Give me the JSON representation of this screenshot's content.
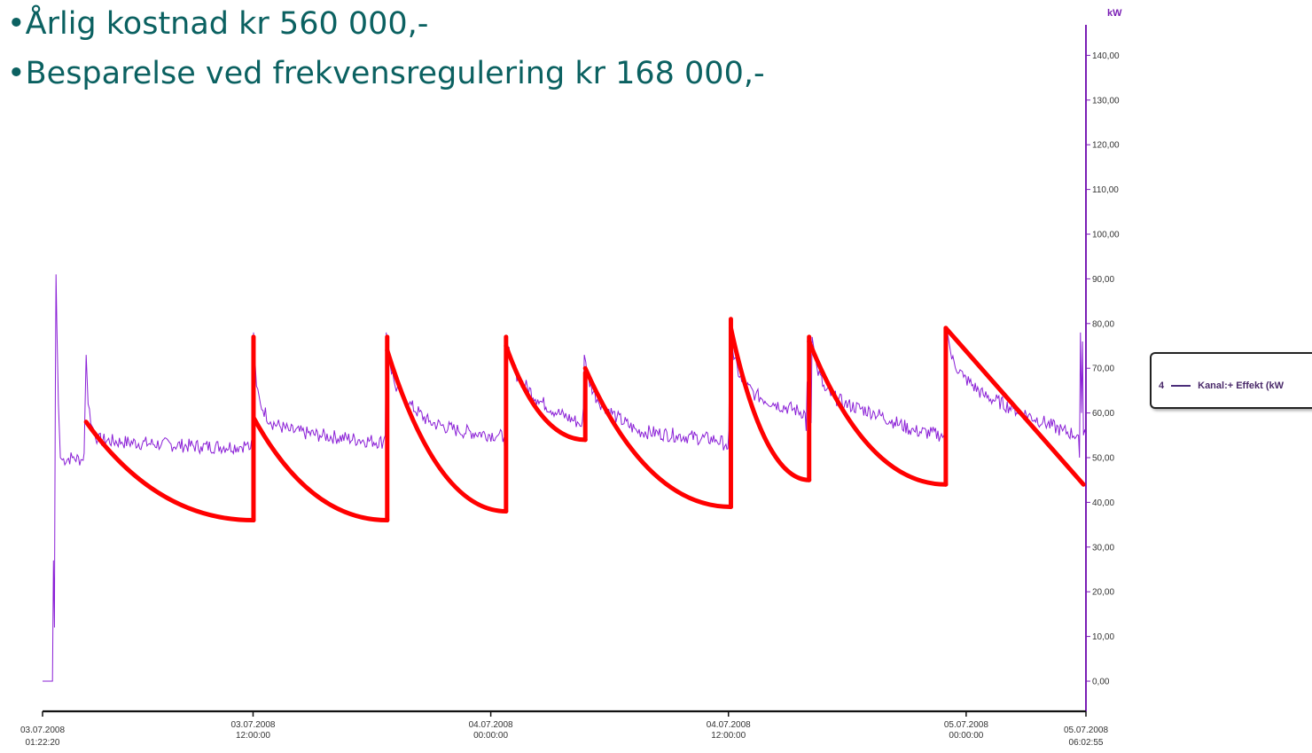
{
  "bullets": [
    {
      "marker": "•",
      "text": "Årlig kostnad kr 560 000,-"
    },
    {
      "marker": "•",
      "text": "Besparelse ved frekvensregulering kr 168 000,-"
    }
  ],
  "colors": {
    "measured": "#8a1fd6",
    "estimated": "#ff0000",
    "axis_y": "#7a1fb5",
    "axis_x": "#111111",
    "bullet_text": "#0b6161"
  },
  "legend": {
    "number": "4",
    "label": "Kanal:+ Effekt (kW"
  },
  "chart_data": [
    {
      "type": "line",
      "title": "",
      "ylabel": "kW",
      "ylim": [
        -5,
        148
      ],
      "yticks": [
        0,
        10,
        20,
        30,
        40,
        50,
        60,
        70,
        80,
        90,
        100,
        110,
        120,
        130,
        140
      ],
      "ytick_labels": [
        "0,00",
        "10,00",
        "20,00",
        "30,00",
        "40,00",
        "50,00",
        "60,00",
        "70,00",
        "80,00",
        "90,00",
        "100,00",
        "110,00",
        "120,00",
        "130,00",
        "140,00"
      ],
      "x_unit": "hours since 03.07.2008 01:22:20",
      "xlim": [
        0,
        52.676
      ],
      "xticks": [
        {
          "x": 0,
          "date": "03.07.2008",
          "time": "01:22:20"
        },
        {
          "x": 10.628,
          "date": "03.07.2008",
          "time": "12:00:00"
        },
        {
          "x": 22.628,
          "date": "04.07.2008",
          "time": "00:00:00"
        },
        {
          "x": 34.628,
          "date": "04.07.2008",
          "time": "12:00:00"
        },
        {
          "x": 46.628,
          "date": "05.07.2008",
          "time": "00:00:00"
        },
        {
          "x": 52.676,
          "date": "05.07.2008",
          "time": "06:02:55"
        }
      ],
      "series": [
        {
          "name": "Kanal:+ Effekt (kW",
          "color": "#8a1fd6",
          "noise": 1.6,
          "points": [
            [
              0.0,
              0
            ],
            [
              0.4,
              0
            ],
            [
              0.5,
              0
            ],
            [
              0.55,
              27
            ],
            [
              0.6,
              12
            ],
            [
              0.62,
              40
            ],
            [
              0.65,
              68
            ],
            [
              0.68,
              91
            ],
            [
              0.72,
              80
            ],
            [
              0.8,
              62
            ],
            [
              0.9,
              50
            ],
            [
              1.0,
              49.5
            ],
            [
              1.5,
              50
            ],
            [
              2.0,
              49.5
            ],
            [
              2.1,
              51
            ],
            [
              2.2,
              73
            ],
            [
              2.3,
              62
            ],
            [
              2.5,
              57
            ],
            [
              2.8,
              54
            ],
            [
              4.0,
              53.5
            ],
            [
              6.0,
              53
            ],
            [
              8.0,
              52.5
            ],
            [
              10.0,
              52.5
            ],
            [
              10.3,
              53
            ],
            [
              10.5,
              52
            ],
            [
              10.6,
              53
            ],
            [
              10.65,
              78
            ],
            [
              10.8,
              66
            ],
            [
              11.0,
              62
            ],
            [
              11.5,
              58
            ],
            [
              12.5,
              56
            ],
            [
              14.0,
              55
            ],
            [
              16.0,
              54
            ],
            [
              17.2,
              53.5
            ],
            [
              17.3,
              55
            ],
            [
              17.35,
              78
            ],
            [
              17.5,
              72
            ],
            [
              17.8,
              66
            ],
            [
              18.5,
              62
            ],
            [
              19.5,
              58
            ],
            [
              21.0,
              56
            ],
            [
              23.0,
              55
            ],
            [
              23.3,
              54.5
            ],
            [
              23.35,
              49
            ],
            [
              23.4,
              56
            ],
            [
              23.45,
              77
            ],
            [
              23.6,
              72
            ],
            [
              24.0,
              68
            ],
            [
              25.0,
              63
            ],
            [
              26.0,
              60
            ],
            [
              27.0,
              58
            ],
            [
              27.2,
              57
            ],
            [
              27.3,
              61
            ],
            [
              27.35,
              73
            ],
            [
              27.5,
              68
            ],
            [
              28.0,
              63
            ],
            [
              29.0,
              59
            ],
            [
              30.0,
              56
            ],
            [
              32.0,
              55
            ],
            [
              34.0,
              54
            ],
            [
              34.5,
              53
            ],
            [
              34.6,
              52
            ],
            [
              34.65,
              56
            ],
            [
              34.7,
              80
            ],
            [
              34.9,
              72
            ],
            [
              35.3,
              67
            ],
            [
              36.0,
              64
            ],
            [
              37.0,
              62
            ],
            [
              38.5,
              60
            ],
            [
              38.55,
              56
            ],
            [
              38.6,
              67
            ],
            [
              38.65,
              58
            ],
            [
              38.8,
              58
            ],
            [
              38.85,
              77
            ],
            [
              39.1,
              70
            ],
            [
              39.5,
              65
            ],
            [
              40.5,
              62
            ],
            [
              42.0,
              60
            ],
            [
              43.0,
              58
            ],
            [
              44.0,
              56
            ],
            [
              45.5,
              55
            ],
            [
              45.55,
              53
            ],
            [
              45.6,
              60
            ],
            [
              45.65,
              79
            ],
            [
              45.9,
              72
            ],
            [
              46.5,
              68
            ],
            [
              47.5,
              64
            ],
            [
              49.0,
              61
            ],
            [
              50.5,
              58
            ],
            [
              51.5,
              56
            ],
            [
              52.3,
              55
            ],
            [
              52.35,
              50
            ],
            [
              52.4,
              78
            ],
            [
              52.45,
              60
            ],
            [
              52.5,
              76
            ],
            [
              52.55,
              55
            ],
            [
              52.676,
              55
            ]
          ]
        },
        {
          "name": "",
          "color": "#ff0000",
          "segments": [
            [
              [
                2.2,
                58
              ],
              [
                10.5,
                36.5
              ],
              [
                10.65,
                36
              ]
            ],
            [
              [
                10.65,
                36
              ],
              [
                10.65,
                77
              ]
            ],
            [
              [
                10.65,
                59
              ],
              [
                17.3,
                36.2
              ],
              [
                17.4,
                36
              ]
            ],
            [
              [
                17.4,
                36
              ],
              [
                17.4,
                77
              ]
            ],
            [
              [
                17.4,
                74
              ],
              [
                23.3,
                38.2
              ],
              [
                23.4,
                38
              ]
            ],
            [
              [
                23.4,
                38
              ],
              [
                23.4,
                77
              ]
            ],
            [
              [
                23.4,
                75
              ],
              [
                27.3,
                54.3
              ],
              [
                27.4,
                54
              ]
            ],
            [
              [
                27.4,
                54
              ],
              [
                27.4,
                69
              ]
            ],
            [
              [
                27.4,
                70
              ],
              [
                34.1,
                39
              ],
              [
                34.75,
                39
              ]
            ],
            [
              [
                34.75,
                39
              ],
              [
                34.75,
                81
              ]
            ],
            [
              [
                34.75,
                79
              ],
              [
                38.65,
                45.5
              ],
              [
                38.7,
                45
              ]
            ],
            [
              [
                38.7,
                45
              ],
              [
                38.7,
                77
              ]
            ],
            [
              [
                38.7,
                76
              ],
              [
                45.5,
                44.3
              ],
              [
                45.6,
                44
              ]
            ],
            [
              [
                45.6,
                44
              ],
              [
                45.6,
                79
              ]
            ],
            [
              [
                45.6,
                79
              ],
              [
                52.55,
                44
              ]
            ]
          ]
        }
      ]
    }
  ]
}
